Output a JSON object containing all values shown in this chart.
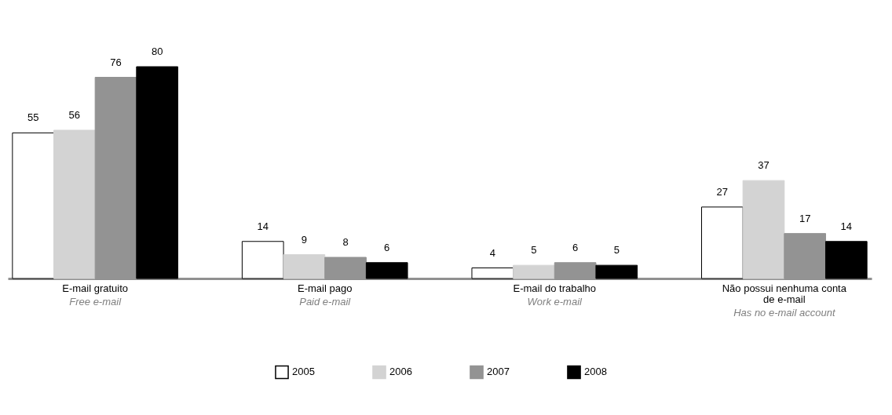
{
  "chart_data": {
    "type": "bar",
    "categories": [
      "E-mail gratuito",
      "E-mail pago",
      "E-mail do  trabalho",
      "Não possui nenhuma conta de e-mail"
    ],
    "series": [
      {
        "name": "2005",
        "color": "#ffffff",
        "values": [
          55,
          14,
          4,
          27
        ]
      },
      {
        "name": "2006",
        "color": "#d3d3d3",
        "values": [
          56,
          9,
          5,
          37
        ]
      },
      {
        "name": "2007",
        "color": "#939393",
        "values": [
          76,
          8,
          6,
          17
        ]
      },
      {
        "name": "2008",
        "color": "#000000",
        "values": [
          80,
          6,
          5,
          14
        ]
      }
    ],
    "data_labels": true,
    "legend": "bottom",
    "grid": false,
    "annotations": [
      "Free e-mail",
      "Paid e-mail",
      "Work e-mail",
      "Has no e-mail account"
    ]
  }
}
